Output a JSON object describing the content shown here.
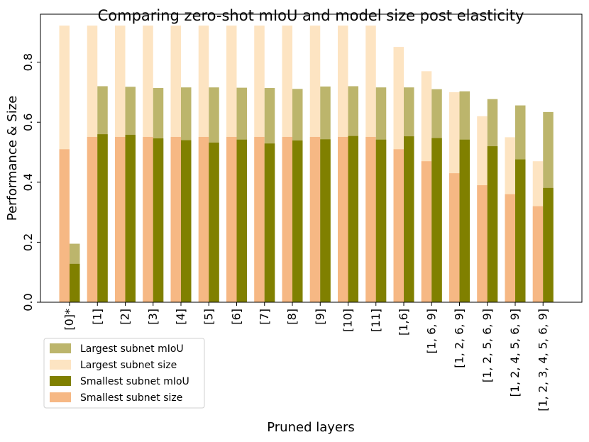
{
  "chart_data": {
    "type": "bar",
    "title": "Comparing zero-shot mIoU and model size post elasticity",
    "xlabel": "Pruned layers",
    "ylabel": "Performance & Size",
    "ylim": [
      0,
      0.96
    ],
    "yticks": [
      "0.0",
      "0.2",
      "0.4",
      "0.6",
      "0.8"
    ],
    "grid": false,
    "legend_position": "bottom-left, below axes",
    "categories": [
      "[0]*",
      "[1]",
      "[2]",
      "[3]",
      "[4]",
      "[5]",
      "[6]",
      "[7]",
      "[8]",
      "[9]",
      "[10]",
      "[11]",
      "[1,6]",
      "[1, 6, 9]",
      "[1, 2, 6, 9]",
      "[1, 2, 5, 6, 9]",
      "[1, 2, 4, 5, 6, 9]",
      "[1, 2, 3, 4, 5, 6, 9]"
    ],
    "series": [
      {
        "name": "Largest subnet mIoU",
        "color": "#bcb56c",
        "position": "right",
        "values": [
          0.195,
          0.72,
          0.718,
          0.714,
          0.716,
          0.716,
          0.715,
          0.714,
          0.711,
          0.719,
          0.72,
          0.716,
          0.716,
          0.71,
          0.703,
          0.677,
          0.656,
          0.634
        ]
      },
      {
        "name": "Largest subnet size",
        "color": "#fde4c2",
        "position": "left",
        "values": [
          0.922,
          0.922,
          0.922,
          0.922,
          0.922,
          0.922,
          0.922,
          0.922,
          0.922,
          0.922,
          0.922,
          0.922,
          0.851,
          0.77,
          0.7,
          0.62,
          0.55,
          0.47
        ]
      },
      {
        "name": "Smallest subnet mIoU",
        "color": "#808000",
        "position": "right",
        "values": [
          0.128,
          0.56,
          0.558,
          0.546,
          0.54,
          0.532,
          0.542,
          0.529,
          0.539,
          0.543,
          0.554,
          0.542,
          0.553,
          0.547,
          0.542,
          0.52,
          0.476,
          0.381
        ]
      },
      {
        "name": "Smallest subnet size",
        "color": "#f6b884",
        "position": "left",
        "values": [
          0.51,
          0.551,
          0.551,
          0.551,
          0.551,
          0.551,
          0.551,
          0.551,
          0.551,
          0.551,
          0.551,
          0.551,
          0.51,
          0.47,
          0.43,
          0.39,
          0.36,
          0.32
        ]
      }
    ]
  }
}
